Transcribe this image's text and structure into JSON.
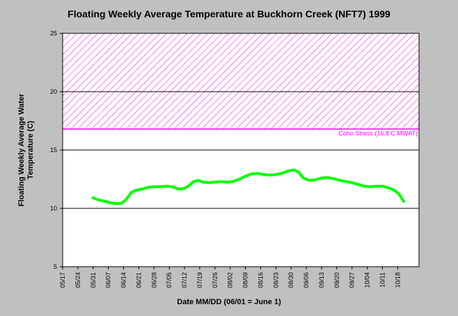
{
  "chart_data": {
    "type": "line",
    "title": "Floating Weekly Average Temperature at Buckhorn Creek (NFT7) 1999",
    "xlabel": "Date MM/DD (06/01 = June 1)",
    "ylabel_lines": [
      "Floating Weekly Average Water",
      "Temperature (C)"
    ],
    "ylim": [
      5,
      25
    ],
    "yticks": [
      5,
      10,
      15,
      20,
      25
    ],
    "gridlines_y": [
      10,
      15,
      20
    ],
    "x_ticks": [
      "05/17",
      "05/24",
      "05/31",
      "06/07",
      "06/14",
      "06/21",
      "06/28",
      "07/05",
      "07/12",
      "07/19",
      "07/26",
      "08/02",
      "08/09",
      "08/16",
      "08/23",
      "08/30",
      "09/06",
      "09/13",
      "09/20",
      "09/27",
      "10/04",
      "10/11",
      "10/18"
    ],
    "xlim": [
      0,
      23.4
    ],
    "threshold": {
      "label": "Coho Stress (16.8 C MWAT)",
      "value": 16.8,
      "band_top": 25,
      "color": "#ff00ff"
    },
    "series": [
      {
        "color": "#00ff00",
        "x": [
          2.0,
          2.4,
          2.8,
          3.2,
          3.6,
          3.9,
          4.2,
          4.5,
          4.8,
          5.2,
          5.6,
          6.0,
          6.4,
          6.8,
          7.2,
          7.6,
          8.0,
          8.3,
          8.6,
          8.9,
          9.2,
          9.6,
          10.0,
          10.4,
          10.8,
          11.2,
          11.6,
          12.0,
          12.4,
          12.8,
          13.2,
          13.6,
          14.0,
          14.4,
          14.8,
          15.2,
          15.5,
          15.8,
          16.2,
          16.6,
          17.0,
          17.4,
          17.8,
          18.2,
          18.6,
          19.0,
          19.4,
          19.8,
          20.2,
          20.6,
          21.0,
          21.4,
          21.8,
          22.1,
          22.4
        ],
        "y": [
          10.9,
          10.7,
          10.6,
          10.45,
          10.4,
          10.45,
          10.8,
          11.35,
          11.55,
          11.65,
          11.8,
          11.85,
          11.85,
          11.9,
          11.85,
          11.65,
          11.7,
          11.95,
          12.3,
          12.4,
          12.25,
          12.2,
          12.25,
          12.3,
          12.25,
          12.3,
          12.5,
          12.75,
          12.95,
          13.0,
          12.9,
          12.85,
          12.9,
          13.0,
          13.2,
          13.3,
          13.1,
          12.6,
          12.4,
          12.45,
          12.6,
          12.65,
          12.55,
          12.4,
          12.3,
          12.2,
          12.05,
          11.9,
          11.85,
          11.9,
          11.9,
          11.75,
          11.55,
          11.2,
          10.6
        ]
      }
    ]
  }
}
